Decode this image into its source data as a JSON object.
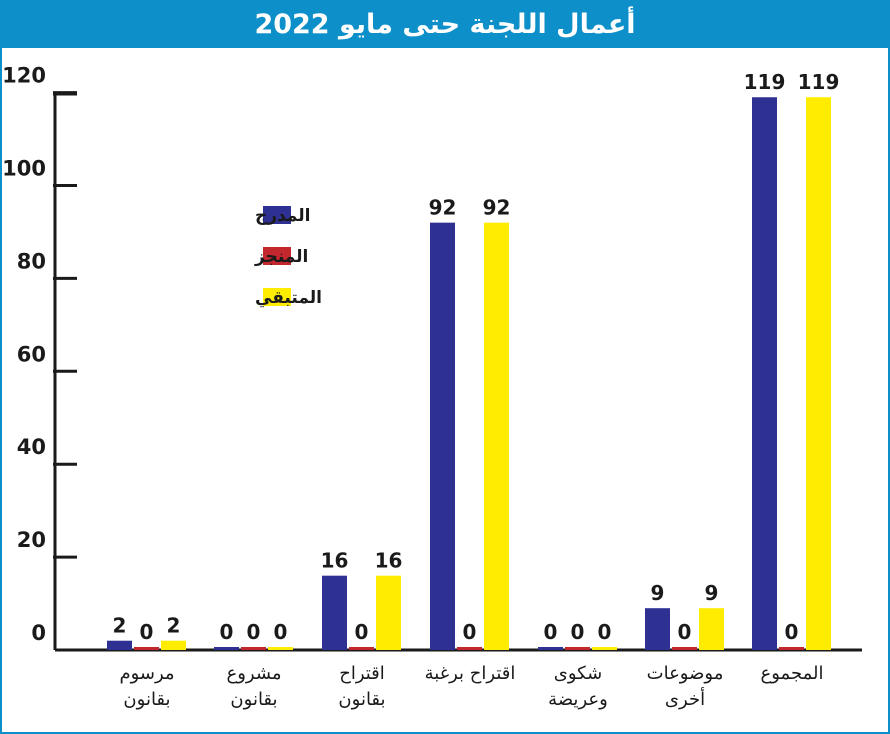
{
  "chart_data": {
    "type": "bar",
    "title": "أعمال اللجنة حتى مايو 2022",
    "categories": [
      [
        "مرسوم",
        "بقانون"
      ],
      [
        "مشروع",
        "بقانون"
      ],
      [
        "اقتراح",
        "بقانون"
      ],
      [
        "اقتراح برغبة"
      ],
      [
        "شكوى",
        "وعريضة"
      ],
      [
        "موضوعات",
        "أخرى"
      ],
      [
        "المجموع"
      ]
    ],
    "series": [
      {
        "name": "المدرج",
        "color": "#2e3192",
        "values": [
          2,
          0,
          16,
          92,
          0,
          9,
          119
        ]
      },
      {
        "name": "المنجز",
        "color": "#c1272d",
        "values": [
          0,
          0,
          0,
          0,
          0,
          0,
          0
        ]
      },
      {
        "name": "المتبقي",
        "color": "#ffec00",
        "values": [
          2,
          0,
          16,
          92,
          0,
          9,
          119
        ]
      }
    ],
    "ylim": [
      0,
      120
    ],
    "yticks": [
      0,
      20,
      40,
      60,
      80,
      100,
      120
    ],
    "legend_position": "upper-left",
    "grid": false
  },
  "colors": {
    "frame": "#0d8fc9",
    "title_bar": "#0d8fc9",
    "title_text": "#ffffff"
  }
}
